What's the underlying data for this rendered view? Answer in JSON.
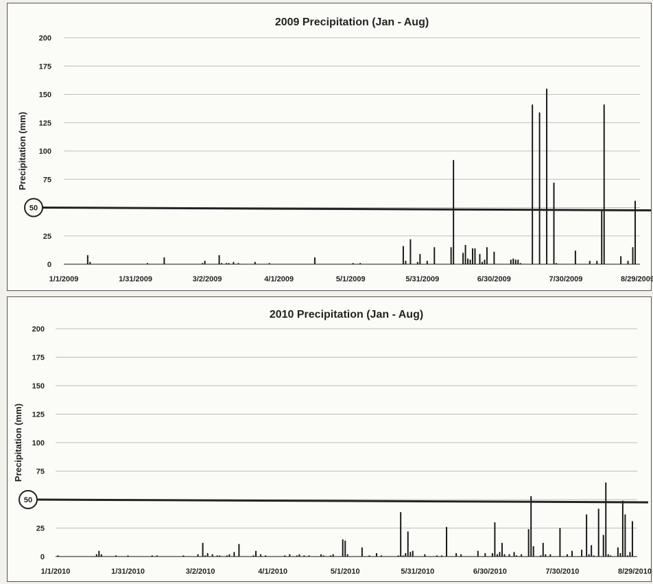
{
  "chart_data": [
    {
      "type": "bar",
      "title": "2009 Precipitation (Jan - Aug)",
      "ylabel": "Precipitation (mm)",
      "xlabel": "",
      "ylim": [
        0,
        200
      ],
      "yticks": [
        0,
        25,
        50,
        75,
        100,
        125,
        150,
        175,
        200
      ],
      "grid": true,
      "xticks": [
        "1/1/2009",
        "1/31/2009",
        "3/2/2009",
        "4/1/2009",
        "5/1/2009",
        "5/31/2009",
        "6/30/2009",
        "7/30/2009",
        "8/29/2009"
      ],
      "x_range_days": [
        0,
        241
      ],
      "reference_line": {
        "value": 50,
        "circled_label": "50"
      },
      "day": [
        10,
        11,
        35,
        42,
        58,
        59,
        65,
        66,
        68,
        69,
        71,
        73,
        80,
        86,
        105,
        121,
        124,
        142,
        143,
        145,
        148,
        149,
        152,
        155,
        162,
        163,
        167,
        168,
        169,
        170,
        171,
        172,
        174,
        175,
        176,
        177,
        180,
        187,
        188,
        189,
        190,
        191,
        196,
        199,
        202,
        205,
        206,
        214,
        220,
        223,
        225,
        226,
        233,
        236,
        238,
        239
      ],
      "values": [
        8,
        2,
        1,
        6,
        1,
        3,
        8,
        1,
        1,
        1,
        2,
        1,
        2,
        1,
        6,
        1,
        1,
        16,
        3,
        22,
        2,
        9,
        3,
        15,
        15,
        92,
        10,
        17,
        5,
        4,
        14,
        14,
        9,
        2,
        4,
        15,
        11,
        4,
        5,
        4,
        4,
        1,
        141,
        134,
        155,
        72,
        1,
        12,
        3,
        3,
        47,
        141,
        7,
        3,
        15,
        56
      ]
    },
    {
      "type": "bar",
      "title": "2010 Precipitation (Jan - Aug)",
      "ylabel": "Precipitation (mm)",
      "xlabel": "",
      "ylim": [
        0,
        200
      ],
      "yticks": [
        0,
        25,
        50,
        75,
        100,
        125,
        150,
        175,
        200
      ],
      "grid": true,
      "xticks": [
        "1/1/2010",
        "1/31/2010",
        "3/2/2010",
        "4/1/2010",
        "5/1/2010",
        "5/31/2010",
        "6/30/2010",
        "7/30/2010",
        "8/29/2010"
      ],
      "x_range_days": [
        0,
        241
      ],
      "reference_line": {
        "value": 50,
        "circled_label": "50"
      },
      "day": [
        1,
        17,
        18,
        19,
        25,
        30,
        40,
        42,
        53,
        59,
        61,
        62,
        63,
        65,
        67,
        68,
        71,
        72,
        74,
        76,
        82,
        83,
        85,
        87,
        95,
        97,
        100,
        101,
        103,
        105,
        110,
        111,
        114,
        115,
        119,
        120,
        121,
        127,
        130,
        133,
        135,
        142,
        143,
        144,
        145,
        146,
        147,
        148,
        153,
        158,
        160,
        162,
        166,
        168,
        175,
        178,
        181,
        182,
        183,
        184,
        185,
        186,
        188,
        190,
        191,
        193,
        196,
        197,
        198,
        201,
        202,
        203,
        205,
        209,
        212,
        214,
        218,
        220,
        221,
        222,
        223,
        225,
        227,
        228,
        229,
        230,
        233,
        234,
        235,
        236,
        237,
        238,
        239
      ],
      "values": [
        1,
        2,
        5,
        2,
        1,
        1,
        1,
        1,
        1,
        2,
        12,
        1,
        3,
        2,
        1,
        1,
        1,
        2,
        4,
        11,
        1,
        5,
        2,
        1,
        1,
        2,
        1,
        2,
        1,
        1,
        2,
        1,
        1,
        2,
        15,
        14,
        2,
        8,
        1,
        3,
        1,
        1,
        39,
        1,
        3,
        22,
        4,
        5,
        2,
        1,
        1,
        26,
        3,
        2,
        5,
        3,
        3,
        30,
        2,
        4,
        12,
        2,
        2,
        4,
        1,
        2,
        24,
        53,
        9,
        1,
        12,
        2,
        2,
        25,
        2,
        5,
        6,
        37,
        2,
        10,
        1,
        42,
        19,
        65,
        2,
        1,
        8,
        3,
        49,
        37,
        1,
        4,
        31
      ]
    }
  ]
}
